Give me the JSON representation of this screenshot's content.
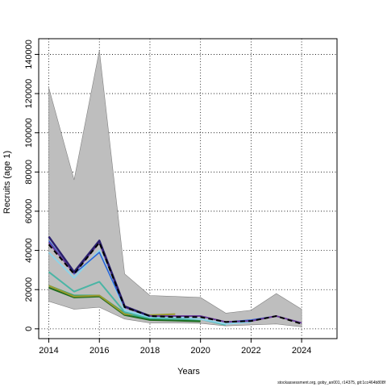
{
  "chart_data": {
    "type": "line",
    "xlabel": "Years",
    "ylabel": "Recruits (age 1)",
    "xlim": [
      2013.6,
      2025.4
    ],
    "ylim": [
      -5000,
      148000
    ],
    "x_ticks": [
      2014,
      2016,
      2018,
      2020,
      2022,
      2024
    ],
    "y_ticks": [
      0,
      20000,
      40000,
      60000,
      80000,
      100000,
      120000,
      140000
    ],
    "x_tick_labels": [
      "2014",
      "2016",
      "2018",
      "2020",
      "2022",
      "2024"
    ],
    "y_tick_labels": [
      "0",
      "20000",
      "40000",
      "60000",
      "80000",
      "100000",
      "120000",
      "140000"
    ],
    "grid": true,
    "colors": {
      "band": "#bebebe",
      "band_edge": "#808080",
      "grid": "#000000"
    },
    "confidence_band": {
      "x": [
        2014,
        2015,
        2016,
        2017,
        2018,
        2019,
        2020,
        2021,
        2022,
        2023,
        2024
      ],
      "upper": [
        123000,
        76000,
        142000,
        28000,
        17000,
        16500,
        16000,
        8000,
        9500,
        18000,
        10000
      ],
      "lower": [
        14000,
        10000,
        11000,
        5000,
        3000,
        3000,
        2800,
        1500,
        2000,
        2500,
        1000
      ]
    },
    "series": [
      {
        "color": "#2ca87a",
        "width": 2,
        "dash": "",
        "x": [
          2014,
          2015,
          2016,
          2017,
          2018,
          2019,
          2020
        ],
        "y": [
          22000,
          17000,
          17000,
          8000,
          5000,
          4500,
          4000
        ]
      },
      {
        "color": "#1e6b1e",
        "width": 2,
        "dash": "",
        "x": [
          2014,
          2015,
          2016,
          2017,
          2018,
          2019,
          2020
        ],
        "y": [
          21000,
          16000,
          16500,
          7000,
          4500,
          4200,
          3800
        ]
      },
      {
        "color": "#9a9a2e",
        "width": 2,
        "dash": "",
        "x": [
          2014,
          2015,
          2016,
          2017,
          2018,
          2019
        ],
        "y": [
          22000,
          16500,
          17000,
          7500,
          7000,
          7500
        ]
      },
      {
        "color": "#4ab5a5",
        "width": 2,
        "dash": "",
        "x": [
          2014,
          2015,
          2016,
          2017,
          2018,
          2019,
          2020,
          2021
        ],
        "y": [
          29000,
          19000,
          24000,
          8500,
          5500,
          5000,
          5000,
          2000
        ]
      },
      {
        "color": "#8cd3ea",
        "width": 2,
        "dash": "",
        "x": [
          2014,
          2015,
          2016,
          2017,
          2018,
          2019,
          2020,
          2021,
          2022
        ],
        "y": [
          39000,
          26000,
          40000,
          9500,
          6000,
          6000,
          5000,
          2500,
          3500
        ]
      },
      {
        "color": "#2b5fd6",
        "width": 1.5,
        "dash": "",
        "x": [
          2014,
          2015,
          2016,
          2017,
          2018,
          2019,
          2020,
          2021,
          2022,
          2023
        ],
        "y": [
          45000,
          28000,
          39000,
          11000,
          6500,
          6500,
          6500,
          3500,
          4500,
          6500
        ]
      },
      {
        "color": "#6a3d9a",
        "width": 2,
        "dash": "",
        "x": [
          2014,
          2015,
          2016,
          2017,
          2018,
          2019,
          2020,
          2021,
          2022,
          2023,
          2024
        ],
        "y": [
          44000,
          28500,
          44000,
          11000,
          6500,
          6500,
          6500,
          3500,
          4000,
          6500,
          3000
        ]
      },
      {
        "color": "#2a1f6e",
        "width": 2.5,
        "dash": "",
        "x": [
          2014,
          2015,
          2016,
          2017,
          2018
        ],
        "y": [
          47000,
          29000,
          45000,
          11500,
          6500
        ]
      },
      {
        "color": "#000000",
        "width": 2,
        "dash": "6,4",
        "x": [
          2014,
          2015,
          2016,
          2017,
          2018,
          2019,
          2020,
          2021,
          2022,
          2023,
          2024
        ],
        "y": [
          43000,
          28000,
          44000,
          11000,
          6500,
          6000,
          6000,
          3500,
          4000,
          6500,
          2500
        ]
      }
    ]
  },
  "footer": {
    "text": "stockassessment.org, goby_an001, r14375, git:1cc464b808f"
  }
}
